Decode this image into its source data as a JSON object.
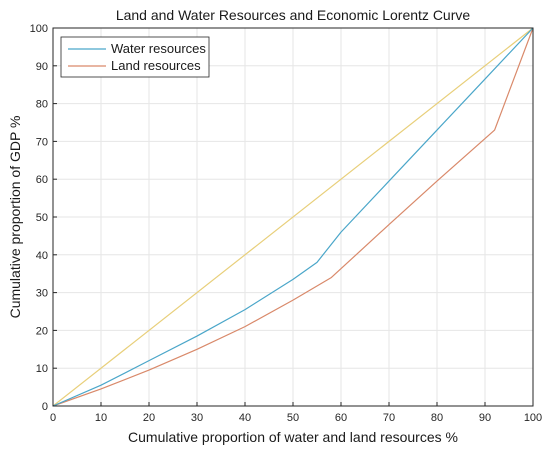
{
  "chart_data": {
    "type": "line",
    "title": "Land and Water Resources and Economic Lorentz Curve",
    "xlabel": "Cumulative proportion of water and land resources %",
    "ylabel": "Cumulative proportion of GDP %",
    "xlim": [
      0,
      100
    ],
    "ylim": [
      0,
      100
    ],
    "xticks": [
      "0",
      "10",
      "20",
      "30",
      "40",
      "50",
      "60",
      "70",
      "80",
      "90",
      "100"
    ],
    "yticks": [
      "0",
      "10",
      "20",
      "30",
      "40",
      "50",
      "60",
      "70",
      "80",
      "90",
      "100"
    ],
    "grid": true,
    "legend_position": "top-left",
    "series": [
      {
        "name": "Water resources",
        "color": "#4aa6c9",
        "x": [
          0,
          10,
          20,
          30,
          40,
          50,
          55,
          60,
          70,
          80,
          90,
          100
        ],
        "y": [
          0,
          5.5,
          12,
          18.5,
          25.5,
          33.5,
          38,
          46,
          59.5,
          73,
          86.5,
          100
        ]
      },
      {
        "name": "Land resources",
        "color": "#d9896a",
        "x": [
          0,
          10,
          20,
          30,
          40,
          50,
          58,
          70,
          80,
          92,
          100
        ],
        "y": [
          0,
          4.5,
          9.5,
          15,
          21,
          28,
          34,
          48,
          59.5,
          73,
          100
        ]
      },
      {
        "color": "#e8cf7a",
        "x": [
          0,
          100
        ],
        "y": [
          0,
          100
        ]
      }
    ]
  }
}
